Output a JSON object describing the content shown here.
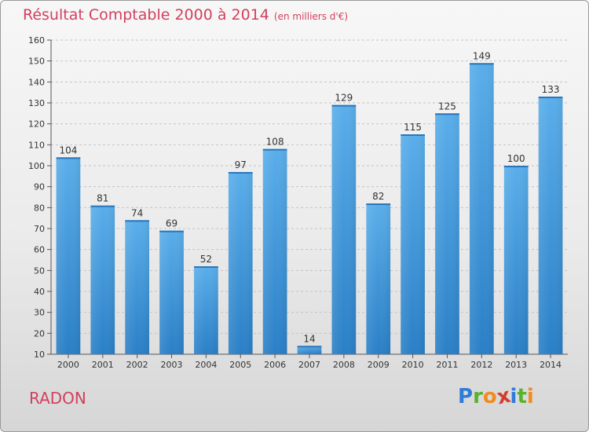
{
  "title": "Résultat Comptable 2000 à 2014",
  "subtitle": "(en milliers d'€)",
  "commune": "RADON",
  "logo": {
    "letters": [
      "P",
      "r",
      "o",
      "x",
      "i",
      "t",
      "i"
    ],
    "colors": [
      "#2f7bd8",
      "#58b22c",
      "#f08c1c",
      "#d63b2e",
      "#2f7bd8",
      "#58b22c",
      "#f08c1c"
    ]
  },
  "colors": {
    "bar": "#3b93dc",
    "title": "#d2405c"
  },
  "chart_data": {
    "type": "bar",
    "title": "Résultat Comptable 2000 à 2014",
    "subtitle": "(en milliers d'€)",
    "xlabel": "",
    "ylabel": "",
    "ylim": [
      10,
      160
    ],
    "yticks": [
      10,
      20,
      30,
      40,
      50,
      60,
      70,
      80,
      90,
      100,
      110,
      120,
      130,
      140,
      150,
      160
    ],
    "grid": true,
    "categories": [
      "2000",
      "2001",
      "2002",
      "2003",
      "2004",
      "2005",
      "2006",
      "2007",
      "2008",
      "2009",
      "2010",
      "2011",
      "2012",
      "2013",
      "2014"
    ],
    "values": [
      104,
      81,
      74,
      69,
      52,
      97,
      108,
      14,
      129,
      82,
      115,
      125,
      149,
      100,
      133
    ]
  }
}
